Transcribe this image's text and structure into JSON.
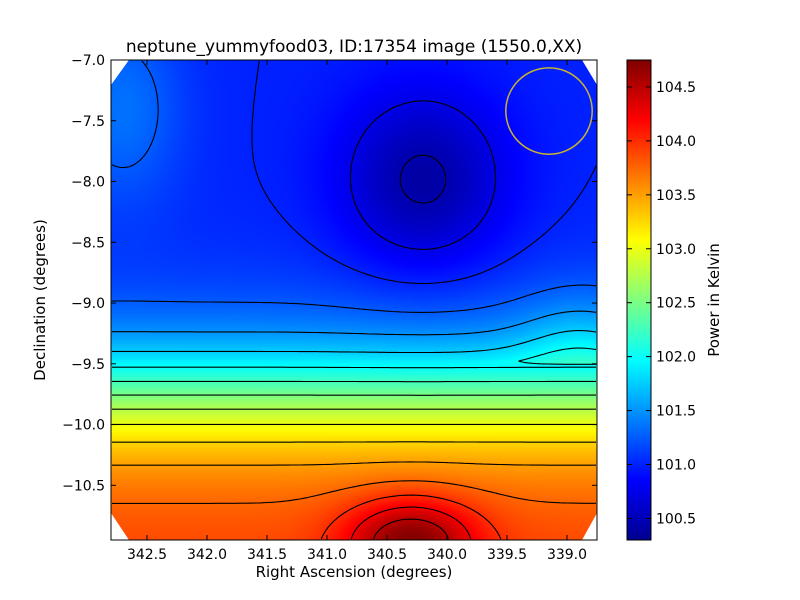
{
  "chart_data": {
    "type": "heatmap",
    "title": "neptune_yummyfood03, ID:17354 image (1550.0,XX)",
    "xlabel": "Right Ascension (degrees)",
    "ylabel": "Declination (degrees)",
    "colorbar_label": "Power in Kelvin",
    "colormap": "jet",
    "xlim": [
      342.8,
      338.75
    ],
    "ylim": [
      -10.95,
      -7.0
    ],
    "x_ticks": [
      342.5,
      342.0,
      341.5,
      341.0,
      340.5,
      340.0,
      339.5,
      339.0
    ],
    "x_tick_labels": [
      "342.5",
      "342.0",
      "341.5",
      "341.0",
      "340.5",
      "340.0",
      "339.5",
      "339.0"
    ],
    "y_ticks": [
      -7.0,
      -7.5,
      -8.0,
      -8.5,
      -9.0,
      -9.5,
      -10.0,
      -10.5
    ],
    "y_tick_labels": [
      "−7.0",
      "−7.5",
      "−8.0",
      "−8.5",
      "−9.0",
      "−9.5",
      "−10.0",
      "−10.5"
    ],
    "colorbar_range": [
      100.3,
      104.75
    ],
    "colorbar_ticks": [
      100.5,
      101.0,
      101.5,
      102.0,
      102.5,
      103.0,
      103.5,
      104.0,
      104.5
    ],
    "colorbar_tick_labels": [
      "100.5",
      "101.0",
      "101.5",
      "102.0",
      "102.5",
      "103.0",
      "103.5",
      "104.0",
      "104.5"
    ],
    "contour_interval": 0.25,
    "contour_range": [
      100.5,
      104.5
    ],
    "features": [
      {
        "kind": "minimum",
        "ra": 340.2,
        "dec": -8.0,
        "value": 100.35
      },
      {
        "kind": "maximum",
        "ra": 340.3,
        "dec": -10.95,
        "value": 104.75
      },
      {
        "kind": "beam_circle",
        "ra": 339.15,
        "dec": -7.42,
        "radius_deg": 0.36,
        "color": "#c8b432"
      }
    ]
  }
}
